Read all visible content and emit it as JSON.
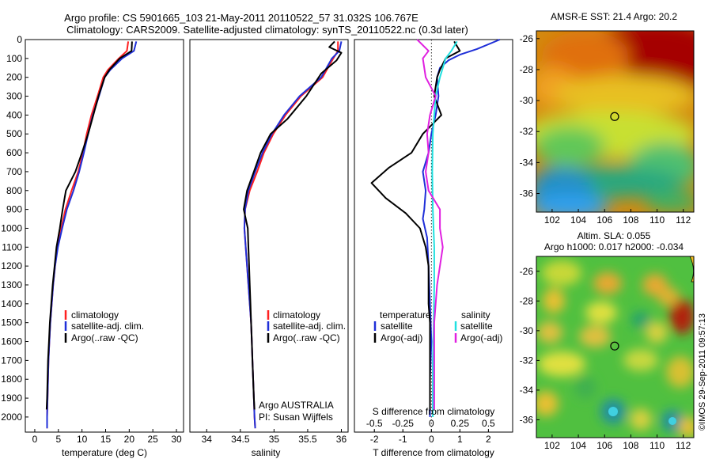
{
  "header": {
    "title_line1": "Argo profile: CS 5901665_103 21-May-2011 20110522_57 31.032S 106.767E",
    "title_line2": "Climatology: CARS2009. Satellite-adjusted climatology: synTS_20110522.nc (0.3d later)"
  },
  "watermark": "©IMOS 29-Sep-2011 09:57:13",
  "colors": {
    "climatology": "#ff2020",
    "satellite": "#1f2fd8",
    "argo": "#000000",
    "argo_salinity": "#e020e0",
    "satellite_salinity": "#20e0e0"
  },
  "chart_data": [
    {
      "type": "line",
      "name": "temperature profile",
      "xlabel": "temperature (deg C)",
      "ylabel": "",
      "xlim": [
        -2,
        31.5
      ],
      "ylim": [
        2080,
        0
      ],
      "xticks": [
        0,
        5,
        10,
        15,
        20,
        25,
        30
      ],
      "yticks": [
        0,
        100,
        200,
        300,
        400,
        500,
        600,
        700,
        800,
        900,
        1000,
        1100,
        1200,
        1300,
        1400,
        1500,
        1600,
        1700,
        1800,
        1900,
        2000
      ],
      "legend": {
        "position": "lower-center",
        "items": [
          "climatology",
          "satellite-adj. clim.",
          "Argo(..raw -QC)"
        ]
      },
      "series": [
        {
          "name": "climatology",
          "color": "#ff2020",
          "points": [
            [
              19.8,
              10
            ],
            [
              19.5,
              60
            ],
            [
              17.8,
              100
            ],
            [
              15.5,
              160
            ],
            [
              14.5,
              200
            ],
            [
              13.3,
              300
            ],
            [
              12.0,
              400
            ],
            [
              11.0,
              500
            ],
            [
              10.2,
              600
            ],
            [
              9.2,
              700
            ],
            [
              7.8,
              800
            ],
            [
              6.5,
              900
            ],
            [
              5.6,
              1000
            ],
            [
              4.8,
              1100
            ],
            [
              4.3,
              1200
            ],
            [
              3.9,
              1300
            ],
            [
              3.6,
              1400
            ],
            [
              3.3,
              1500
            ],
            [
              3.1,
              1600
            ],
            [
              2.9,
              1700
            ],
            [
              2.8,
              1800
            ],
            [
              2.7,
              1900
            ],
            [
              2.6,
              2000
            ],
            [
              2.6,
              2060
            ]
          ]
        },
        {
          "name": "satellite-adj. clim.",
          "color": "#1f2fd8",
          "points": [
            [
              21.5,
              10
            ],
            [
              21.0,
              60
            ],
            [
              18.5,
              100
            ],
            [
              16.0,
              160
            ],
            [
              14.8,
              200
            ],
            [
              13.6,
              300
            ],
            [
              12.3,
              400
            ],
            [
              11.3,
              500
            ],
            [
              10.4,
              600
            ],
            [
              9.4,
              700
            ],
            [
              8.2,
              800
            ],
            [
              6.8,
              900
            ],
            [
              5.8,
              1000
            ],
            [
              4.9,
              1100
            ],
            [
              4.3,
              1200
            ],
            [
              3.9,
              1300
            ],
            [
              3.6,
              1400
            ],
            [
              3.3,
              1500
            ],
            [
              3.1,
              1600
            ],
            [
              2.9,
              1700
            ],
            [
              2.8,
              1800
            ],
            [
              2.7,
              1900
            ],
            [
              2.6,
              2000
            ],
            [
              2.6,
              2060
            ]
          ]
        },
        {
          "name": "Argo(..raw -QC)",
          "color": "#000000",
          "points": [
            [
              20.6,
              10
            ],
            [
              20.5,
              60
            ],
            [
              18.0,
              100
            ],
            [
              15.8,
              160
            ],
            [
              14.8,
              200
            ],
            [
              13.5,
              300
            ],
            [
              12.4,
              400
            ],
            [
              11.3,
              500
            ],
            [
              10.0,
              600
            ],
            [
              8.6,
              700
            ],
            [
              6.6,
              800
            ],
            [
              5.9,
              900
            ],
            [
              5.3,
              1000
            ],
            [
              4.6,
              1100
            ],
            [
              4.2,
              1200
            ],
            [
              3.8,
              1300
            ],
            [
              3.5,
              1400
            ],
            [
              3.2,
              1500
            ],
            [
              3.0,
              1600
            ],
            [
              2.8,
              1700
            ],
            [
              2.7,
              1800
            ],
            [
              2.6,
              1900
            ],
            [
              2.5,
              1960
            ]
          ]
        }
      ]
    },
    {
      "type": "line",
      "name": "salinity profile",
      "xlabel": "salinity",
      "ylabel": "",
      "xlim": [
        33.75,
        36.1
      ],
      "ylim": [
        2080,
        0
      ],
      "xticks": [
        34,
        34.5,
        35,
        35.5,
        36
      ],
      "legend": {
        "position": "lower-center",
        "items": [
          "climatology",
          "satellite-adj. clim.",
          "Argo(..raw -QC)"
        ]
      },
      "annotations": [
        "Argo AUSTRALIA",
        "PI: Susan Wijffels"
      ],
      "series": [
        {
          "name": "climatology",
          "color": "#ff2020",
          "points": [
            [
              35.95,
              10
            ],
            [
              35.95,
              60
            ],
            [
              35.88,
              100
            ],
            [
              35.72,
              200
            ],
            [
              35.4,
              300
            ],
            [
              35.17,
              400
            ],
            [
              34.99,
              500
            ],
            [
              34.85,
              600
            ],
            [
              34.75,
              700
            ],
            [
              34.64,
              800
            ],
            [
              34.57,
              900
            ],
            [
              34.56,
              1000
            ],
            [
              34.58,
              1100
            ],
            [
              34.6,
              1200
            ],
            [
              34.62,
              1300
            ],
            [
              34.64,
              1400
            ],
            [
              34.66,
              1500
            ],
            [
              34.67,
              1600
            ],
            [
              34.68,
              1700
            ],
            [
              34.69,
              1800
            ],
            [
              34.7,
              1900
            ],
            [
              34.71,
              2000
            ],
            [
              34.72,
              2060
            ]
          ]
        },
        {
          "name": "satellite-adj. clim.",
          "color": "#1f2fd8",
          "points": [
            [
              36.0,
              10
            ],
            [
              35.97,
              60
            ],
            [
              35.86,
              100
            ],
            [
              35.7,
              200
            ],
            [
              35.38,
              300
            ],
            [
              35.15,
              400
            ],
            [
              34.97,
              500
            ],
            [
              34.83,
              600
            ],
            [
              34.72,
              700
            ],
            [
              34.62,
              800
            ],
            [
              34.57,
              900
            ],
            [
              34.56,
              1000
            ],
            [
              34.58,
              1100
            ],
            [
              34.6,
              1200
            ],
            [
              34.62,
              1300
            ],
            [
              34.64,
              1400
            ],
            [
              34.66,
              1500
            ],
            [
              34.67,
              1600
            ],
            [
              34.68,
              1700
            ],
            [
              34.69,
              1800
            ],
            [
              34.7,
              1900
            ],
            [
              34.71,
              2000
            ],
            [
              34.72,
              2060
            ]
          ]
        },
        {
          "name": "Argo(..raw -QC)",
          "color": "#000000",
          "points": [
            [
              35.9,
              10
            ],
            [
              35.82,
              40
            ],
            [
              36.0,
              70
            ],
            [
              35.93,
              110
            ],
            [
              35.7,
              180
            ],
            [
              35.48,
              300
            ],
            [
              35.2,
              420
            ],
            [
              34.95,
              500
            ],
            [
              34.8,
              600
            ],
            [
              34.7,
              700
            ],
            [
              34.6,
              800
            ],
            [
              34.55,
              900
            ],
            [
              34.61,
              1000
            ],
            [
              34.62,
              1100
            ],
            [
              34.63,
              1200
            ],
            [
              34.64,
              1300
            ],
            [
              34.65,
              1400
            ],
            [
              34.66,
              1500
            ],
            [
              34.67,
              1600
            ],
            [
              34.68,
              1700
            ],
            [
              34.69,
              1800
            ],
            [
              34.7,
              1900
            ],
            [
              34.71,
              1960
            ]
          ]
        }
      ]
    },
    {
      "type": "line",
      "name": "difference from climatology",
      "xlabel": "T difference from climatology",
      "xlabel_top": "S difference from climatology",
      "xlim": [
        -2.7,
        2.85
      ],
      "ylim": [
        2080,
        0
      ],
      "xticks": [
        -2,
        -1,
        0,
        1,
        2
      ],
      "s_ticks": [
        "-0.5",
        "-0.25",
        "0",
        "0.25",
        "0.5"
      ],
      "legend_temperature": {
        "title": "temperature",
        "items": [
          "satellite",
          "Argo(-adj)"
        ]
      },
      "legend_salinity": {
        "title": "salinity",
        "items": [
          "satellite",
          "Argo(-adj)"
        ]
      },
      "series": [
        {
          "name": "temperature satellite",
          "color": "#1f2fd8",
          "points": [
            [
              2.4,
              0
            ],
            [
              1.6,
              50
            ],
            [
              1.0,
              80
            ],
            [
              0.6,
              110
            ],
            [
              0.3,
              150
            ],
            [
              0.2,
              200
            ],
            [
              0.25,
              300
            ],
            [
              0.15,
              400
            ],
            [
              0.0,
              500
            ],
            [
              -0.1,
              600
            ],
            [
              -0.3,
              700
            ],
            [
              -0.2,
              800
            ],
            [
              -0.25,
              900
            ],
            [
              -0.3,
              950
            ],
            [
              -0.15,
              1050
            ],
            [
              -0.1,
              1200
            ],
            [
              -0.05,
              1400
            ],
            [
              0.0,
              1600
            ],
            [
              -0.05,
              1800
            ],
            [
              -0.05,
              2000
            ]
          ]
        },
        {
          "name": "temperature Argo(-adj)",
          "color": "#000000",
          "points": [
            [
              0.8,
              10
            ],
            [
              1.0,
              60
            ],
            [
              0.5,
              100
            ],
            [
              0.3,
              160
            ],
            [
              0.2,
              200
            ],
            [
              0.1,
              300
            ],
            [
              0.35,
              400
            ],
            [
              -0.3,
              500
            ],
            [
              -0.7,
              600
            ],
            [
              -1.5,
              680
            ],
            [
              -2.1,
              760
            ],
            [
              -1.6,
              840
            ],
            [
              -0.9,
              920
            ],
            [
              -0.4,
              1000
            ],
            [
              -0.2,
              1100
            ],
            [
              -0.1,
              1200
            ],
            [
              -0.1,
              1300
            ],
            [
              -0.1,
              1400
            ],
            [
              -0.05,
              1500
            ],
            [
              -0.05,
              1600
            ],
            [
              -0.05,
              1700
            ],
            [
              -0.05,
              1800
            ],
            [
              -0.05,
              1900
            ],
            [
              -0.05,
              1960
            ]
          ]
        },
        {
          "name": "salinity satellite",
          "color": "#20e0e0",
          "points": [
            [
              0.9,
              10
            ],
            [
              0.7,
              60
            ],
            [
              0.5,
              100
            ],
            [
              0.3,
              200
            ],
            [
              0.15,
              300
            ],
            [
              0.1,
              400
            ],
            [
              0.05,
              500
            ],
            [
              0.03,
              700
            ],
            [
              0.05,
              900
            ],
            [
              0.1,
              1100
            ],
            [
              0.1,
              1300
            ],
            [
              0.08,
              1500
            ],
            [
              0.05,
              1700
            ],
            [
              0.05,
              1900
            ],
            [
              0.05,
              2000
            ]
          ]
        },
        {
          "name": "salinity Argo(-adj)",
          "color": "#e020e0",
          "points": [
            [
              -0.5,
              0
            ],
            [
              -0.1,
              60
            ],
            [
              -0.3,
              100
            ],
            [
              -0.2,
              200
            ],
            [
              0.15,
              300
            ],
            [
              -0.05,
              400
            ],
            [
              -0.15,
              500
            ],
            [
              -0.1,
              600
            ],
            [
              -0.2,
              700
            ],
            [
              -0.1,
              800
            ],
            [
              0.3,
              900
            ],
            [
              0.3,
              1000
            ],
            [
              0.4,
              1100
            ],
            [
              0.3,
              1200
            ],
            [
              0.2,
              1300
            ],
            [
              0.15,
              1400
            ],
            [
              0.1,
              1500
            ],
            [
              0.1,
              1600
            ],
            [
              0.1,
              1700
            ],
            [
              0.1,
              1800
            ],
            [
              0.1,
              1900
            ],
            [
              0.1,
              1960
            ]
          ]
        }
      ]
    },
    {
      "type": "heatmap",
      "name": "sst map",
      "title": "AMSR-E SST: 21.4  Argo: 20.2",
      "xlim": [
        100.8,
        112.8
      ],
      "ylim": [
        -37.2,
        -25.5
      ],
      "xticks": [
        102,
        104,
        106,
        108,
        110,
        112
      ],
      "yticks": [
        -26,
        -28,
        -30,
        -32,
        -34,
        -36
      ],
      "marker": {
        "lon": 106.767,
        "lat": -31.032
      }
    },
    {
      "type": "heatmap",
      "name": "sla map",
      "title_line1": "Altim. SLA: 0.055",
      "title_line2": "Argo h1000: 0.017 h2000: -0.034",
      "xlim": [
        100.8,
        112.8
      ],
      "ylim": [
        -37.2,
        -25.0
      ],
      "xticks": [
        102,
        104,
        106,
        108,
        110,
        112
      ],
      "yticks": [
        -26,
        -28,
        -30,
        -32,
        -34,
        -36
      ],
      "marker": {
        "lon": 106.767,
        "lat": -31.032
      }
    }
  ]
}
